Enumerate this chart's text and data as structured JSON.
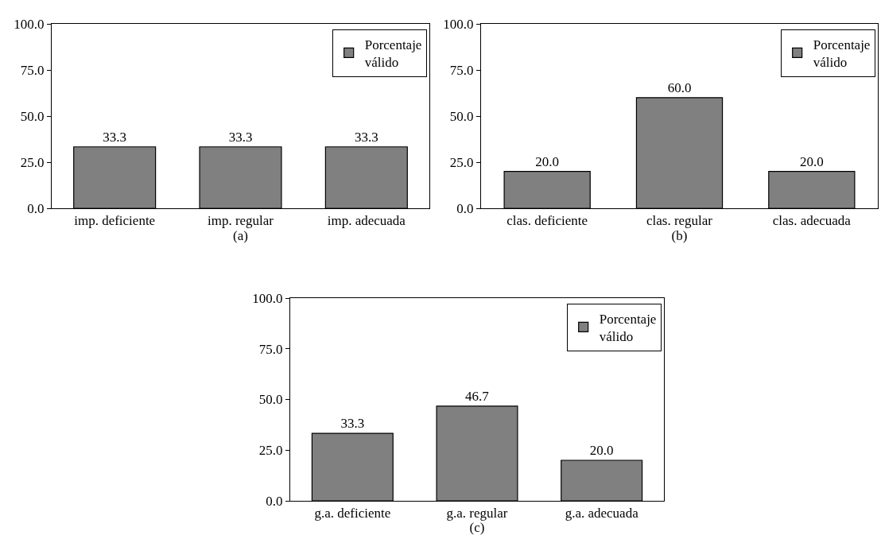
{
  "chart_data": [
    {
      "type": "bar",
      "xlabel": "(a)",
      "categories": [
        "imp. deficiente",
        "imp. regular",
        "imp. adecuada"
      ],
      "series": [
        {
          "name": "Porcentaje válido",
          "color": "#808080",
          "values": [
            33.3,
            33.3,
            33.3
          ],
          "value_labels": [
            "33.3",
            "33.3",
            "33.3"
          ]
        }
      ],
      "ylim": [
        0,
        100
      ],
      "yticks": [
        {
          "value": 0,
          "label": "0.0"
        },
        {
          "value": 25,
          "label": "25.0"
        },
        {
          "value": 50,
          "label": "50.0"
        },
        {
          "value": 75,
          "label": "75.0"
        },
        {
          "value": 100,
          "label": "100.0"
        }
      ],
      "legend": "top right"
    },
    {
      "type": "bar",
      "xlabel": "(b)",
      "categories": [
        "clas. deficiente",
        "clas. regular",
        "clas. adecuada"
      ],
      "series": [
        {
          "name": "Porcentaje válido",
          "color": "#808080",
          "values": [
            20.0,
            60.0,
            20.0
          ],
          "value_labels": [
            "20.0",
            "60.0",
            "20.0"
          ]
        }
      ],
      "ylim": [
        0,
        100
      ],
      "yticks": [
        {
          "value": 0,
          "label": "0.0"
        },
        {
          "value": 25,
          "label": "25.0"
        },
        {
          "value": 50,
          "label": "50.0"
        },
        {
          "value": 75,
          "label": "75.0"
        },
        {
          "value": 100,
          "label": "100.0"
        }
      ],
      "legend": "top right"
    },
    {
      "type": "bar",
      "xlabel": "(c)",
      "categories": [
        "g.a. deficiente",
        "g.a. regular",
        "g.a. adecuada"
      ],
      "series": [
        {
          "name": "Porcentaje válido",
          "color": "#808080",
          "values": [
            33.3,
            46.7,
            20.0
          ],
          "value_labels": [
            "33.3",
            "46.7",
            "20.0"
          ]
        }
      ],
      "ylim": [
        0,
        100
      ],
      "yticks": [
        {
          "value": 0,
          "label": "0.0"
        },
        {
          "value": 25,
          "label": "25.0"
        },
        {
          "value": 50,
          "label": "50.0"
        },
        {
          "value": 75,
          "label": "75.0"
        },
        {
          "value": 100,
          "label": "100.0"
        }
      ],
      "legend": "top right"
    }
  ]
}
